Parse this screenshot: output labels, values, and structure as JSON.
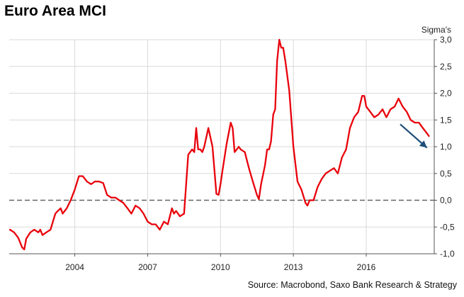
{
  "chart_data": {
    "type": "line",
    "title": "Euro Area MCI",
    "ylabel": "Sigma's",
    "source": "Source: Macrobond, Saxo Bank Research & Strategy",
    "xlim": [
      2001.3,
      2018.8
    ],
    "ylim": [
      -1.0,
      3.0
    ],
    "x_ticks": [
      2004,
      2007,
      2010,
      2013,
      2016
    ],
    "x_tick_labels": [
      "2004",
      "2007",
      "2010",
      "2013",
      "2016"
    ],
    "y_ticks": [
      -1.0,
      -0.5,
      0.0,
      0.5,
      1.0,
      1.5,
      2.0,
      2.5,
      3.0
    ],
    "y_tick_labels": [
      "-1,0",
      "-0,5",
      "0,0",
      "0,5",
      "1,0",
      "1,5",
      "2,0",
      "2,5",
      "3,0"
    ],
    "grid": true,
    "zero_line": "dashed",
    "series": [
      {
        "color": "#e8000b",
        "x": [
          2001.33,
          2001.5,
          2001.67,
          2001.83,
          2001.92,
          2002.0,
          2002.17,
          2002.33,
          2002.5,
          2002.58,
          2002.67,
          2002.83,
          2003.0,
          2003.1,
          2003.2,
          2003.3,
          2003.42,
          2003.5,
          2003.67,
          2003.83,
          2004.0,
          2004.17,
          2004.33,
          2004.5,
          2004.67,
          2004.83,
          2005.0,
          2005.17,
          2005.33,
          2005.5,
          2005.67,
          2005.83,
          2006.0,
          2006.17,
          2006.33,
          2006.5,
          2006.67,
          2006.83,
          2007.0,
          2007.17,
          2007.33,
          2007.5,
          2007.67,
          2007.83,
          2008.0,
          2008.08,
          2008.17,
          2008.25,
          2008.33,
          2008.5,
          2008.67,
          2008.83,
          2008.92,
          2009.0,
          2009.08,
          2009.17,
          2009.25,
          2009.33,
          2009.5,
          2009.67,
          2009.83,
          2009.92,
          2010.0,
          2010.08,
          2010.25,
          2010.42,
          2010.5,
          2010.58,
          2010.67,
          2010.75,
          2010.83,
          2011.0,
          2011.17,
          2011.33,
          2011.5,
          2011.58,
          2011.67,
          2011.83,
          2011.92,
          2012.0,
          2012.08,
          2012.17,
          2012.25,
          2012.33,
          2012.42,
          2012.5,
          2012.58,
          2012.67,
          2012.83,
          2013.0,
          2013.17,
          2013.33,
          2013.5,
          2013.58,
          2013.67,
          2013.83,
          2014.0,
          2014.17,
          2014.33,
          2014.5,
          2014.67,
          2014.83,
          2015.0,
          2015.17,
          2015.33,
          2015.5,
          2015.67,
          2015.83,
          2015.92,
          2016.0,
          2016.17,
          2016.33,
          2016.5,
          2016.67,
          2016.83,
          2017.0,
          2017.17,
          2017.33,
          2017.5,
          2017.67,
          2017.83,
          2018.0,
          2018.17,
          2018.33,
          2018.5,
          2018.58
        ],
        "values": [
          -0.55,
          -0.6,
          -0.7,
          -0.88,
          -0.92,
          -0.72,
          -0.6,
          -0.55,
          -0.6,
          -0.55,
          -0.65,
          -0.6,
          -0.55,
          -0.4,
          -0.25,
          -0.2,
          -0.15,
          -0.25,
          -0.15,
          0.0,
          0.2,
          0.45,
          0.45,
          0.35,
          0.3,
          0.35,
          0.35,
          0.32,
          0.1,
          0.05,
          0.05,
          0.0,
          -0.05,
          -0.15,
          -0.25,
          -0.1,
          -0.15,
          -0.25,
          -0.4,
          -0.45,
          -0.45,
          -0.55,
          -0.4,
          -0.45,
          -0.15,
          -0.25,
          -0.2,
          -0.25,
          -0.3,
          -0.25,
          0.85,
          0.95,
          0.9,
          1.35,
          0.95,
          0.95,
          0.9,
          1.0,
          1.35,
          1.0,
          0.12,
          0.1,
          0.3,
          0.55,
          1.05,
          1.45,
          1.35,
          0.9,
          0.95,
          1.0,
          0.95,
          0.9,
          0.6,
          0.35,
          0.1,
          0.02,
          0.3,
          0.65,
          0.95,
          0.95,
          1.1,
          1.6,
          1.7,
          2.6,
          3.0,
          2.85,
          2.85,
          2.6,
          2.05,
          1.0,
          0.35,
          0.2,
          -0.05,
          -0.1,
          0.0,
          0.0,
          0.25,
          0.4,
          0.5,
          0.55,
          0.6,
          0.5,
          0.8,
          0.95,
          1.35,
          1.55,
          1.65,
          1.95,
          1.95,
          1.75,
          1.65,
          1.55,
          1.6,
          1.7,
          1.55,
          1.7,
          1.75,
          1.9,
          1.75,
          1.65,
          1.5,
          1.45,
          1.45,
          1.35,
          1.25,
          1.2
        ]
      }
    ],
    "annotations": [
      {
        "type": "arrow",
        "color": "#1f4e79",
        "from": [
          2017.4,
          1.42
        ],
        "to": [
          2018.5,
          0.98
        ]
      }
    ]
  }
}
